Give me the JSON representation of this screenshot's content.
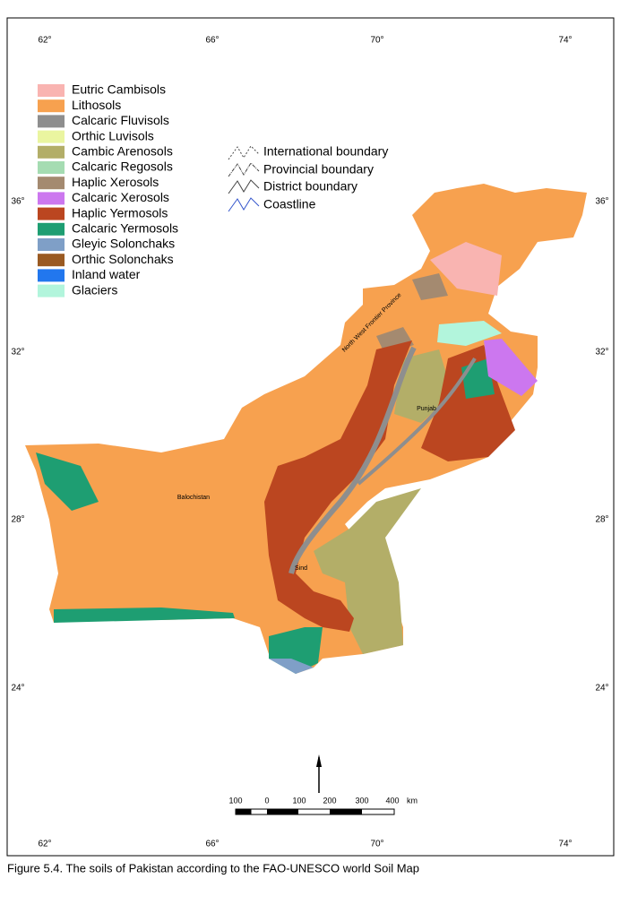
{
  "map": {
    "longitude_labels": [
      "62°",
      "66°",
      "70°",
      "74°"
    ],
    "latitude_labels": [
      "36°",
      "32°",
      "28°",
      "24°"
    ],
    "legend": [
      {
        "name": "Eutric Cambisols",
        "color": "#f9b4b1"
      },
      {
        "name": "Lithosols",
        "color": "#f7a14f"
      },
      {
        "name": "Calcaric Fluvisols",
        "color": "#8e8e8e"
      },
      {
        "name": "Orthic Luvisols",
        "color": "#eaf5a0"
      },
      {
        "name": "Cambic Arenosols",
        "color": "#b3ae68"
      },
      {
        "name": "Calcaric Regosols",
        "color": "#a5dcb2"
      },
      {
        "name": "Haplic Xerosols",
        "color": "#a48a70"
      },
      {
        "name": "Calcaric Xerosols",
        "color": "#cc77ef"
      },
      {
        "name": "Haplic Yermosols",
        "color": "#bb4620"
      },
      {
        "name": "Calcaric Yermosols",
        "color": "#1e9e72"
      },
      {
        "name": "Gleyic Solonchaks",
        "color": "#7f9fc7"
      },
      {
        "name": "Orthic Solonchaks",
        "color": "#9a5a22"
      },
      {
        "name": "Inland water",
        "color": "#2277ee"
      },
      {
        "name": "Glaciers",
        "color": "#b2f5dc"
      }
    ],
    "boundary_legend": [
      "International boundary",
      "Provincial boundary",
      "District boundary",
      "Coastline"
    ],
    "place_labels": [
      "North West Frontier Province",
      "Punjab",
      "Balochistan",
      "Sind"
    ],
    "scale_labels": [
      "100",
      "0",
      "100",
      "200",
      "300",
      "400",
      "km"
    ]
  },
  "caption": "Figure 5.4. The soils of Pakistan according to the FAO-UNESCO world Soil Map"
}
